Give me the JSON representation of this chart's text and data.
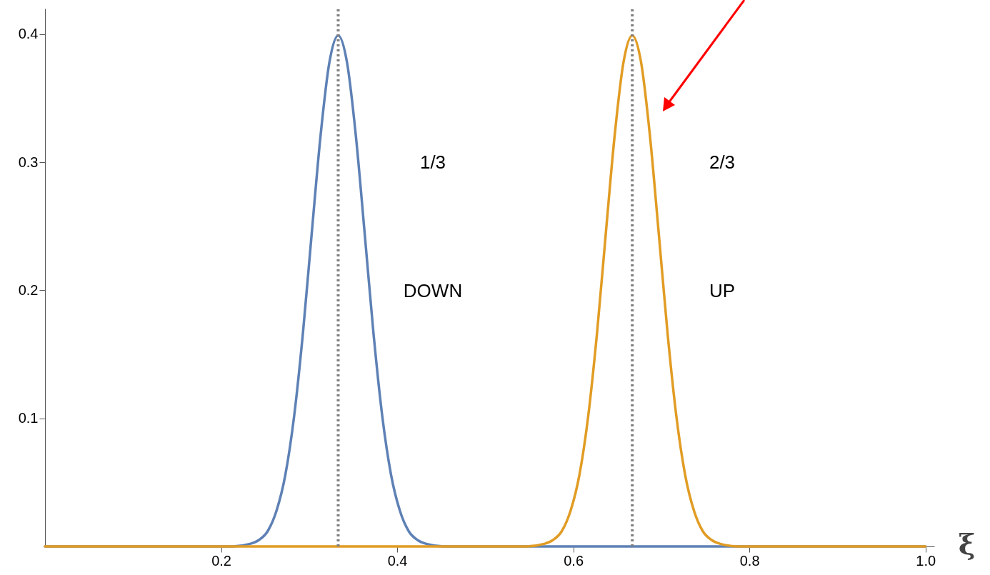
{
  "chart_data": {
    "type": "line",
    "xlabel": "ξ",
    "xlim": [
      0,
      1.01
    ],
    "ylim": [
      0,
      0.42
    ],
    "xticks": [
      0.2,
      0.4,
      0.6,
      0.8,
      {
        "value": 1,
        "label": "1.0"
      }
    ],
    "yticks": [
      0.1,
      0.2,
      0.3,
      0.4
    ],
    "series": [
      {
        "color": "#5e81b5",
        "x": [
          0,
          0.213,
          0.233,
          0.243,
          0.253,
          0.263,
          0.273,
          0.283,
          0.293,
          0.303,
          0.313,
          0.323,
          0.333,
          0.343,
          0.353,
          0.363,
          0.373,
          0.383,
          0.393,
          0.403,
          0.413,
          0.423,
          0.433,
          0.453,
          1
        ],
        "values": [
          0,
          0,
          0.002,
          0.005,
          0.012,
          0.028,
          0.056,
          0.102,
          0.167,
          0.245,
          0.321,
          0.378,
          0.399,
          0.378,
          0.321,
          0.245,
          0.167,
          0.102,
          0.056,
          0.028,
          0.012,
          0.005,
          0.002,
          0,
          0
        ]
      },
      {
        "color": "#e19c24",
        "x": [
          0,
          0.547,
          0.567,
          0.577,
          0.587,
          0.597,
          0.607,
          0.617,
          0.627,
          0.637,
          0.647,
          0.657,
          0.667,
          0.677,
          0.687,
          0.697,
          0.707,
          0.717,
          0.727,
          0.737,
          0.747,
          0.757,
          0.767,
          0.787,
          1
        ],
        "values": [
          0,
          0,
          0.002,
          0.005,
          0.012,
          0.028,
          0.056,
          0.102,
          0.167,
          0.245,
          0.321,
          0.378,
          0.399,
          0.378,
          0.321,
          0.245,
          0.167,
          0.102,
          0.056,
          0.028,
          0.012,
          0.005,
          0.002,
          0,
          0
        ]
      }
    ],
    "ref_lines": [
      {
        "axis": "x",
        "value": 0.333,
        "color": "#808080",
        "line_style": "dotted"
      },
      {
        "axis": "x",
        "value": 0.667,
        "color": "#808080",
        "line_style": "dotted"
      }
    ],
    "annotations": [
      "1/3",
      "DOWN",
      "2/3",
      "UP"
    ]
  }
}
